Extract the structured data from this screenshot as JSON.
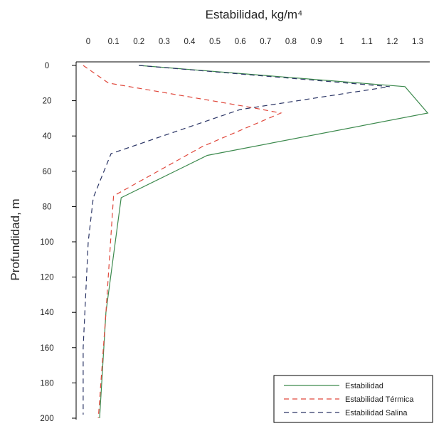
{
  "chart_data": {
    "type": "line",
    "title": "",
    "xlabel": "Estabilidad, kg/m⁴",
    "ylabel": "Profundidad, m",
    "xlim": [
      0,
      1.35
    ],
    "ylim": [
      0,
      200
    ],
    "y_inverted": true,
    "x_axis_position": "top",
    "x_ticks": [
      "0",
      "0.1",
      "0.2",
      "0.3",
      "0.4",
      "0.5",
      "0.6",
      "0.7",
      "0.8",
      "0.9",
      "1",
      "1.1",
      "1.2",
      "1.3"
    ],
    "y_ticks": [
      "0",
      "20",
      "40",
      "60",
      "80",
      "100",
      "120",
      "140",
      "160",
      "180",
      "200"
    ],
    "legend_position": "bottom-right",
    "grid": false,
    "series": [
      {
        "name": "Estabilidad",
        "color": "#3d8a4e",
        "dash": "solid",
        "points": [
          [
            0.2,
            0
          ],
          [
            1.25,
            12
          ],
          [
            1.34,
            27
          ],
          [
            0.47,
            51
          ],
          [
            0.13,
            75
          ],
          [
            0.07,
            140
          ],
          [
            0.045,
            200
          ]
        ]
      },
      {
        "name": "Estabilidad Térmica",
        "color": "#e0483c",
        "dash": "dashed",
        "points": [
          [
            -0.02,
            0
          ],
          [
            0.08,
            10
          ],
          [
            0.65,
            24
          ],
          [
            0.76,
            27
          ],
          [
            0.45,
            46
          ],
          [
            0.1,
            74
          ],
          [
            0.07,
            140
          ],
          [
            0.04,
            200
          ]
        ]
      },
      {
        "name": "Estabilidad Salina",
        "color": "#2c3666",
        "dash": "dashed",
        "points": [
          [
            0.2,
            0
          ],
          [
            1.19,
            12
          ],
          [
            0.6,
            25
          ],
          [
            0.09,
            50
          ],
          [
            0.02,
            75
          ],
          [
            0.0,
            100
          ],
          [
            -0.02,
            160
          ],
          [
            -0.02,
            198
          ]
        ]
      }
    ]
  }
}
